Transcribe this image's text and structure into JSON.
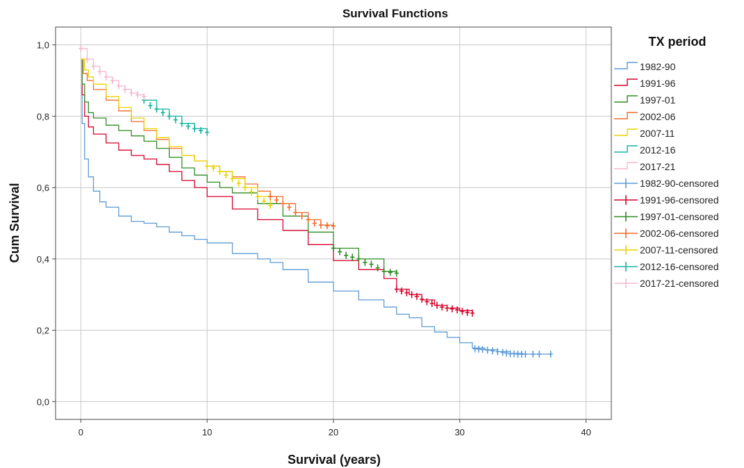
{
  "chart_data": {
    "type": "line",
    "title": "Survival Functions",
    "xlabel": "Survival (years)",
    "ylabel": "Cum Survival",
    "xlim": [
      -2,
      42
    ],
    "ylim": [
      -0.05,
      1.05
    ],
    "x_ticks": [
      0,
      10,
      20,
      30,
      40
    ],
    "x_tick_labels": [
      "0",
      "10",
      "20",
      "30",
      "40"
    ],
    "y_ticks": [
      0,
      0.2,
      0.4,
      0.6,
      0.8,
      1.0
    ],
    "y_tick_labels": [
      "0,0",
      "0,2",
      "0,4",
      "0,6",
      "0,8",
      "1,0"
    ],
    "grid": true,
    "legend": {
      "title": "TX period",
      "placement": "right",
      "items": [
        {
          "label": "1982-90",
          "color": "#5b9bd5",
          "kind": "step"
        },
        {
          "label": "1991-96",
          "color": "#d6002a",
          "kind": "step"
        },
        {
          "label": "1997-01",
          "color": "#2e8b22",
          "kind": "step"
        },
        {
          "label": "2002-06",
          "color": "#f26b2a",
          "kind": "step"
        },
        {
          "label": "2007-11",
          "color": "#e8d400",
          "kind": "step"
        },
        {
          "label": "2012-16",
          "color": "#12b3a0",
          "kind": "step"
        },
        {
          "label": "2017-21",
          "color": "#f7b6d2",
          "kind": "step"
        },
        {
          "label": "1982-90-censored",
          "color": "#5b9bd5",
          "kind": "censored"
        },
        {
          "label": "1991-96-censored",
          "color": "#d6002a",
          "kind": "censored"
        },
        {
          "label": "1997-01-censored",
          "color": "#2e8b22",
          "kind": "censored"
        },
        {
          "label": "2002-06-censored",
          "color": "#f26b2a",
          "kind": "censored"
        },
        {
          "label": "2007-11-censored",
          "color": "#e8d400",
          "kind": "censored"
        },
        {
          "label": "2012-16-censored",
          "color": "#12b3a0",
          "kind": "censored"
        },
        {
          "label": "2017-21-censored",
          "color": "#f7b6d2",
          "kind": "censored"
        }
      ]
    },
    "series": [
      {
        "name": "1982-90",
        "color": "#5b9bd5",
        "x": [
          0,
          0.1,
          0.3,
          0.6,
          1,
          1.5,
          2,
          3,
          4,
          5,
          6,
          7,
          8,
          9,
          10,
          12,
          14,
          15,
          16,
          18,
          20,
          22,
          24,
          25,
          26,
          27,
          28,
          29,
          30,
          31,
          32,
          33,
          34,
          35,
          37.2
        ],
        "y": [
          0.96,
          0.78,
          0.68,
          0.63,
          0.59,
          0.56,
          0.545,
          0.52,
          0.505,
          0.5,
          0.49,
          0.475,
          0.465,
          0.455,
          0.445,
          0.415,
          0.4,
          0.39,
          0.37,
          0.335,
          0.31,
          0.285,
          0.265,
          0.245,
          0.235,
          0.21,
          0.195,
          0.18,
          0.165,
          0.15,
          0.145,
          0.14,
          0.135,
          0.133,
          0.133
        ],
        "censor_x": [
          31.2,
          31.5,
          31.8,
          32.2,
          32.6,
          33,
          33.4,
          33.7,
          34,
          34.3,
          34.6,
          34.9,
          35.2,
          35.8,
          36.3,
          37.2
        ],
        "censor_y": [
          0.148,
          0.147,
          0.146,
          0.144,
          0.142,
          0.14,
          0.138,
          0.136,
          0.134,
          0.134,
          0.133,
          0.133,
          0.133,
          0.133,
          0.133,
          0.133
        ]
      },
      {
        "name": "1991-96",
        "color": "#d6002a",
        "x": [
          0,
          0.1,
          0.3,
          0.6,
          1,
          2,
          3,
          4,
          5,
          6,
          7,
          8,
          9,
          10,
          12,
          14,
          16,
          18,
          20,
          22,
          24,
          25,
          26,
          27,
          28,
          29,
          30,
          31
        ],
        "y": [
          0.96,
          0.86,
          0.8,
          0.77,
          0.75,
          0.725,
          0.705,
          0.69,
          0.68,
          0.665,
          0.645,
          0.62,
          0.6,
          0.575,
          0.54,
          0.51,
          0.48,
          0.44,
          0.395,
          0.37,
          0.345,
          0.315,
          0.3,
          0.285,
          0.27,
          0.262,
          0.255,
          0.248
        ],
        "censor_x": [
          25,
          25.4,
          25.8,
          26.2,
          26.6,
          27,
          27.4,
          27.8,
          28.2,
          28.6,
          29,
          29.4,
          29.8,
          30.2,
          30.6,
          31
        ],
        "censor_y": [
          0.315,
          0.31,
          0.305,
          0.3,
          0.295,
          0.287,
          0.28,
          0.275,
          0.27,
          0.265,
          0.262,
          0.26,
          0.257,
          0.253,
          0.25,
          0.248
        ]
      },
      {
        "name": "1997-01",
        "color": "#2e8b22",
        "x": [
          0,
          0.1,
          0.3,
          0.6,
          1,
          2,
          3,
          4,
          5,
          6,
          7,
          8,
          9,
          10,
          11,
          12,
          14,
          16,
          18,
          20,
          22,
          24,
          25
        ],
        "y": [
          0.96,
          0.89,
          0.84,
          0.81,
          0.795,
          0.775,
          0.76,
          0.745,
          0.73,
          0.71,
          0.685,
          0.655,
          0.635,
          0.615,
          0.6,
          0.585,
          0.555,
          0.52,
          0.475,
          0.43,
          0.4,
          0.365,
          0.36
        ],
        "censor_x": [
          20,
          20.5,
          21,
          21.5,
          22,
          22.5,
          23,
          23.5,
          24,
          24.5,
          25
        ],
        "censor_y": [
          0.43,
          0.42,
          0.41,
          0.405,
          0.4,
          0.39,
          0.385,
          0.375,
          0.365,
          0.362,
          0.36
        ]
      },
      {
        "name": "2002-06",
        "color": "#f26b2a",
        "x": [
          0,
          0.2,
          0.5,
          1,
          2,
          3,
          4,
          5,
          6,
          7,
          8,
          9,
          10,
          11,
          12,
          13,
          14,
          15,
          16,
          17,
          18,
          19,
          20
        ],
        "y": [
          0.96,
          0.92,
          0.9,
          0.875,
          0.845,
          0.815,
          0.785,
          0.76,
          0.735,
          0.71,
          0.69,
          0.675,
          0.66,
          0.645,
          0.63,
          0.61,
          0.59,
          0.575,
          0.555,
          0.53,
          0.51,
          0.495,
          0.492
        ],
        "censor_x": [
          15,
          15.5,
          16,
          16.5,
          17,
          17.5,
          18,
          18.5,
          19,
          19.5,
          20
        ],
        "censor_y": [
          0.575,
          0.565,
          0.555,
          0.545,
          0.53,
          0.52,
          0.51,
          0.5,
          0.495,
          0.493,
          0.492
        ]
      },
      {
        "name": "2007-11",
        "color": "#e8d400",
        "x": [
          0,
          0.3,
          0.6,
          1,
          2,
          3,
          4,
          5,
          6,
          7,
          8,
          9,
          10,
          11,
          12,
          13,
          14,
          15
        ],
        "y": [
          0.96,
          0.93,
          0.91,
          0.89,
          0.855,
          0.825,
          0.795,
          0.765,
          0.74,
          0.715,
          0.69,
          0.675,
          0.66,
          0.645,
          0.625,
          0.6,
          0.575,
          0.55
        ],
        "censor_x": [
          10,
          10.5,
          11,
          11.5,
          12,
          12.5,
          13,
          13.5,
          14,
          14.5,
          15
        ],
        "censor_y": [
          0.66,
          0.655,
          0.645,
          0.635,
          0.625,
          0.612,
          0.6,
          0.588,
          0.575,
          0.562,
          0.55
        ]
      },
      {
        "name": "2012-16",
        "color": "#12b3a0",
        "x": [
          5,
          6,
          7,
          8,
          9,
          10
        ],
        "y": [
          0.845,
          0.82,
          0.8,
          0.78,
          0.765,
          0.755
        ],
        "censor_x": [
          5,
          5.5,
          6,
          6.5,
          7,
          7.5,
          8,
          8.5,
          9,
          9.5,
          10
        ],
        "censor_y": [
          0.845,
          0.83,
          0.82,
          0.81,
          0.8,
          0.79,
          0.78,
          0.772,
          0.765,
          0.76,
          0.755
        ]
      },
      {
        "name": "2017-21",
        "color": "#f7b6d2",
        "x": [
          0,
          0.5,
          1,
          1.5,
          2,
          2.5,
          3,
          3.5,
          4,
          4.5,
          5
        ],
        "y": [
          0.99,
          0.96,
          0.94,
          0.925,
          0.91,
          0.9,
          0.885,
          0.875,
          0.865,
          0.86,
          0.855
        ],
        "censor_x": [
          0,
          0.5,
          1,
          1.5,
          2,
          2.5,
          3,
          3.5,
          4,
          4.5,
          5
        ],
        "censor_y": [
          0.99,
          0.96,
          0.94,
          0.925,
          0.91,
          0.9,
          0.885,
          0.875,
          0.865,
          0.86,
          0.855
        ]
      }
    ]
  }
}
